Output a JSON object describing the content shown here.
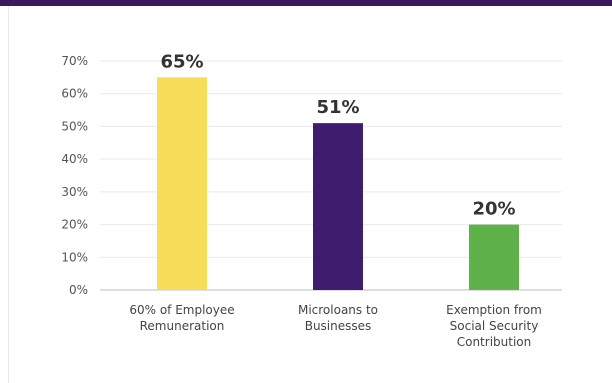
{
  "colors": {
    "frame_top": "#3b1a5c",
    "grid": "#e9e9e9",
    "axis": "#bdbdbd"
  },
  "chart_data": {
    "type": "bar",
    "categories": [
      [
        "60% of Employee",
        "Remuneration"
      ],
      [
        "Microloans to",
        "Businesses"
      ],
      [
        "Exemption from",
        "Social Security",
        "Contribution"
      ]
    ],
    "values": [
      65,
      51,
      20
    ],
    "value_labels": [
      "65%",
      "51%",
      "20%"
    ],
    "bar_colors": [
      "#f7dd5a",
      "#3f1c6e",
      "#5fb14a"
    ],
    "ylim": [
      0,
      70
    ],
    "yticks": [
      0,
      10,
      20,
      30,
      40,
      50,
      60,
      70
    ],
    "ytick_labels": [
      "0%",
      "10%",
      "20%",
      "30%",
      "40%",
      "50%",
      "60%",
      "70%"
    ],
    "grid": true,
    "legend": "none",
    "title": "",
    "xlabel": "",
    "ylabel": ""
  }
}
